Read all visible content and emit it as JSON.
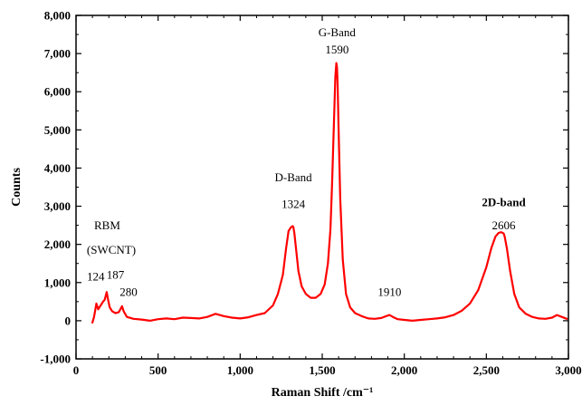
{
  "chart_data": {
    "type": "line",
    "xlabel": "Raman Shift /cm⁻¹",
    "ylabel": "Counts",
    "xlim": [
      0,
      3000
    ],
    "ylim": [
      -1000,
      8000
    ],
    "x_ticks": [
      0,
      500,
      1000,
      1500,
      2000,
      2500,
      3000
    ],
    "x_tick_labels": [
      "0",
      "500",
      "1,000",
      "1,500",
      "2,000",
      "2,500",
      "3,000"
    ],
    "y_ticks": [
      -1000,
      0,
      1000,
      2000,
      3000,
      4000,
      5000,
      6000,
      7000,
      8000
    ],
    "y_tick_labels": [
      "-1,000",
      "0",
      "1,000",
      "2,000",
      "3,000",
      "4,000",
      "5,000",
      "6,000",
      "7,000",
      "8,000"
    ],
    "grid": false,
    "series": [
      {
        "color": "#ff0000",
        "x": [
          100,
          110,
          124,
          135,
          150,
          165,
          175,
          187,
          195,
          205,
          220,
          240,
          260,
          270,
          280,
          290,
          310,
          350,
          400,
          450,
          500,
          550,
          600,
          650,
          700,
          750,
          800,
          850,
          900,
          950,
          1000,
          1050,
          1100,
          1150,
          1200,
          1230,
          1260,
          1280,
          1295,
          1310,
          1320,
          1324,
          1330,
          1340,
          1355,
          1375,
          1400,
          1430,
          1460,
          1490,
          1515,
          1535,
          1550,
          1560,
          1570,
          1580,
          1586,
          1590,
          1594,
          1600,
          1610,
          1625,
          1645,
          1670,
          1700,
          1740,
          1780,
          1820,
          1860,
          1890,
          1910,
          1930,
          1960,
          2000,
          2050,
          2100,
          2150,
          2200,
          2250,
          2300,
          2350,
          2400,
          2450,
          2500,
          2530,
          2555,
          2575,
          2590,
          2600,
          2606,
          2612,
          2625,
          2645,
          2670,
          2700,
          2740,
          2780,
          2820,
          2860,
          2900,
          2930,
          2960,
          2990
        ],
        "values": [
          -50,
          100,
          450,
          300,
          400,
          500,
          550,
          750,
          550,
          350,
          250,
          200,
          220,
          300,
          380,
          250,
          100,
          50,
          30,
          0,
          40,
          60,
          40,
          80,
          70,
          60,
          100,
          180,
          120,
          80,
          60,
          90,
          150,
          200,
          400,
          700,
          1200,
          1900,
          2350,
          2450,
          2480,
          2450,
          2300,
          1900,
          1300,
          900,
          700,
          600,
          600,
          700,
          950,
          1500,
          2400,
          3600,
          5000,
          6400,
          6750,
          6650,
          6200,
          5000,
          3200,
          1600,
          700,
          350,
          200,
          120,
          60,
          50,
          70,
          120,
          150,
          100,
          40,
          20,
          0,
          20,
          40,
          60,
          90,
          150,
          260,
          450,
          800,
          1400,
          1900,
          2200,
          2300,
          2320,
          2300,
          2280,
          2200,
          1900,
          1300,
          700,
          350,
          180,
          100,
          60,
          50,
          80,
          150,
          100,
          50
        ]
      }
    ],
    "annotations": [
      {
        "text": "G-Band",
        "x": 1590,
        "y": 7450,
        "bold": false
      },
      {
        "text": "1590",
        "x": 1590,
        "y": 7000,
        "bold": false
      },
      {
        "text": "D-Band",
        "x": 1324,
        "y": 3650,
        "bold": false
      },
      {
        "text": "1324",
        "x": 1324,
        "y": 2950,
        "bold": false
      },
      {
        "text": "2D-band",
        "x": 2606,
        "y": 3000,
        "bold": true
      },
      {
        "text": "2606",
        "x": 2606,
        "y": 2400,
        "bold": false
      },
      {
        "text": "1910",
        "x": 1910,
        "y": 650,
        "bold": false
      },
      {
        "text": "RBM",
        "x": 190,
        "y": 2400,
        "bold": false
      },
      {
        "text": "(SWCNT)",
        "x": 215,
        "y": 1750,
        "bold": false
      },
      {
        "text": "124",
        "x": 120,
        "y": 1050,
        "bold": false
      },
      {
        "text": "187",
        "x": 240,
        "y": 1100,
        "bold": false
      },
      {
        "text": "280",
        "x": 320,
        "y": 650,
        "bold": false
      }
    ]
  }
}
